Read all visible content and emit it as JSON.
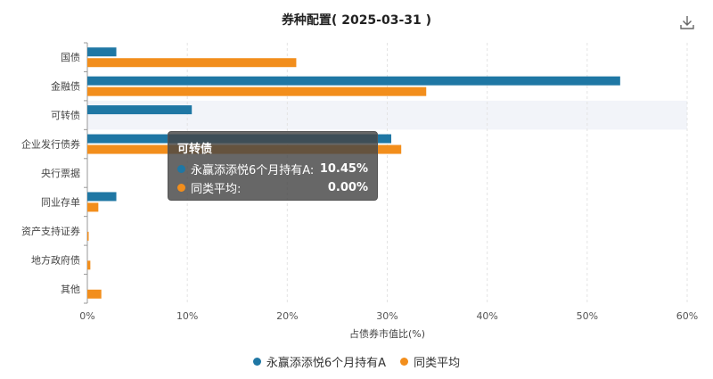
{
  "chart_data": {
    "type": "bar",
    "orientation": "horizontal",
    "title": "券种配置( 2025-03-31 )",
    "xlabel": "占债券市值比(%)",
    "ylabel": "",
    "xlim": [
      0,
      60
    ],
    "x_ticks": [
      "0%",
      "10%",
      "20%",
      "30%",
      "40%",
      "50%",
      "60%"
    ],
    "grid": "vertical-dashed",
    "legend_position": "bottom",
    "categories": [
      "国债",
      "金融债",
      "可转债",
      "企业发行债券",
      "央行票据",
      "同业存单",
      "资产支持证券",
      "地方政府债",
      "其他"
    ],
    "series": [
      {
        "name": "永赢添添悦6个月持有A",
        "color": "#1f77a4",
        "values": [
          2.9,
          53.3,
          10.45,
          30.4,
          0,
          2.9,
          0,
          0,
          0
        ]
      },
      {
        "name": "同类平均",
        "color": "#f28e1c",
        "values": [
          20.9,
          33.9,
          0.0,
          31.4,
          0,
          1.1,
          0.1,
          0.3,
          1.4
        ]
      }
    ],
    "highlight_category": "可转债"
  },
  "tooltip": {
    "title": "可转债",
    "rows": [
      {
        "name": "永赢添添悦6个月持有A:",
        "value": "10.45%",
        "color": "#1f77a4"
      },
      {
        "name": "同类平均:",
        "value": "0.00%",
        "color": "#f28e1c"
      }
    ]
  },
  "toolbar": {
    "download_icon": "download-icon"
  }
}
